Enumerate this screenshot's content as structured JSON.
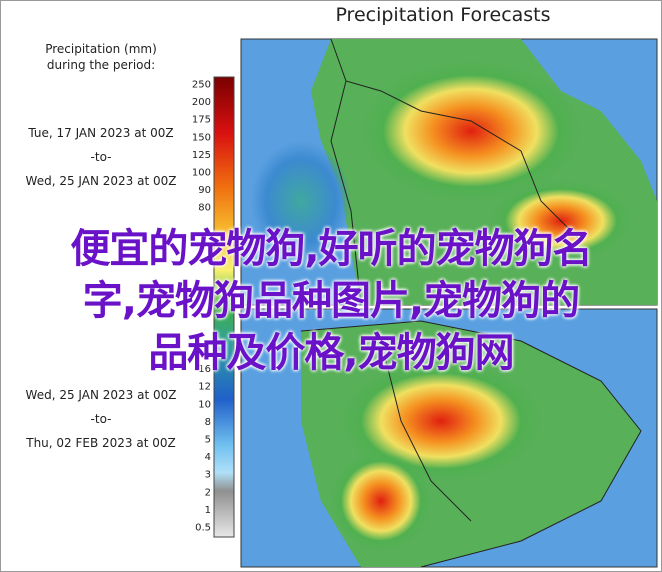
{
  "title": "Precipitation Forecasts",
  "legend": {
    "heading": [
      "Precipitation (mm)",
      "during the period:"
    ],
    "periods": [
      {
        "start": "Tue, 17 JAN 2023 at 00Z",
        "sep": "-to-",
        "end": "Wed, 25 JAN 2023 at 00Z"
      },
      {
        "start": "Wed, 25 JAN 2023 at 00Z",
        "sep": "-to-",
        "end": "Thu, 02 FEB 2023 at 00Z"
      }
    ]
  },
  "colorbar_ticks_upper": [
    "250",
    "200",
    "175",
    "150",
    "125",
    "100",
    "90",
    "80"
  ],
  "colorbar_ticks_lower": [
    "16",
    "12",
    "10",
    "8",
    "5",
    "4",
    "3",
    "2",
    "1",
    "0.5"
  ],
  "overlay_text": [
    "便宜的宠物狗,好听的宠物狗名",
    "字,宠物狗品种图片,宠物狗的",
    "品种及价格,宠物狗网"
  ]
}
